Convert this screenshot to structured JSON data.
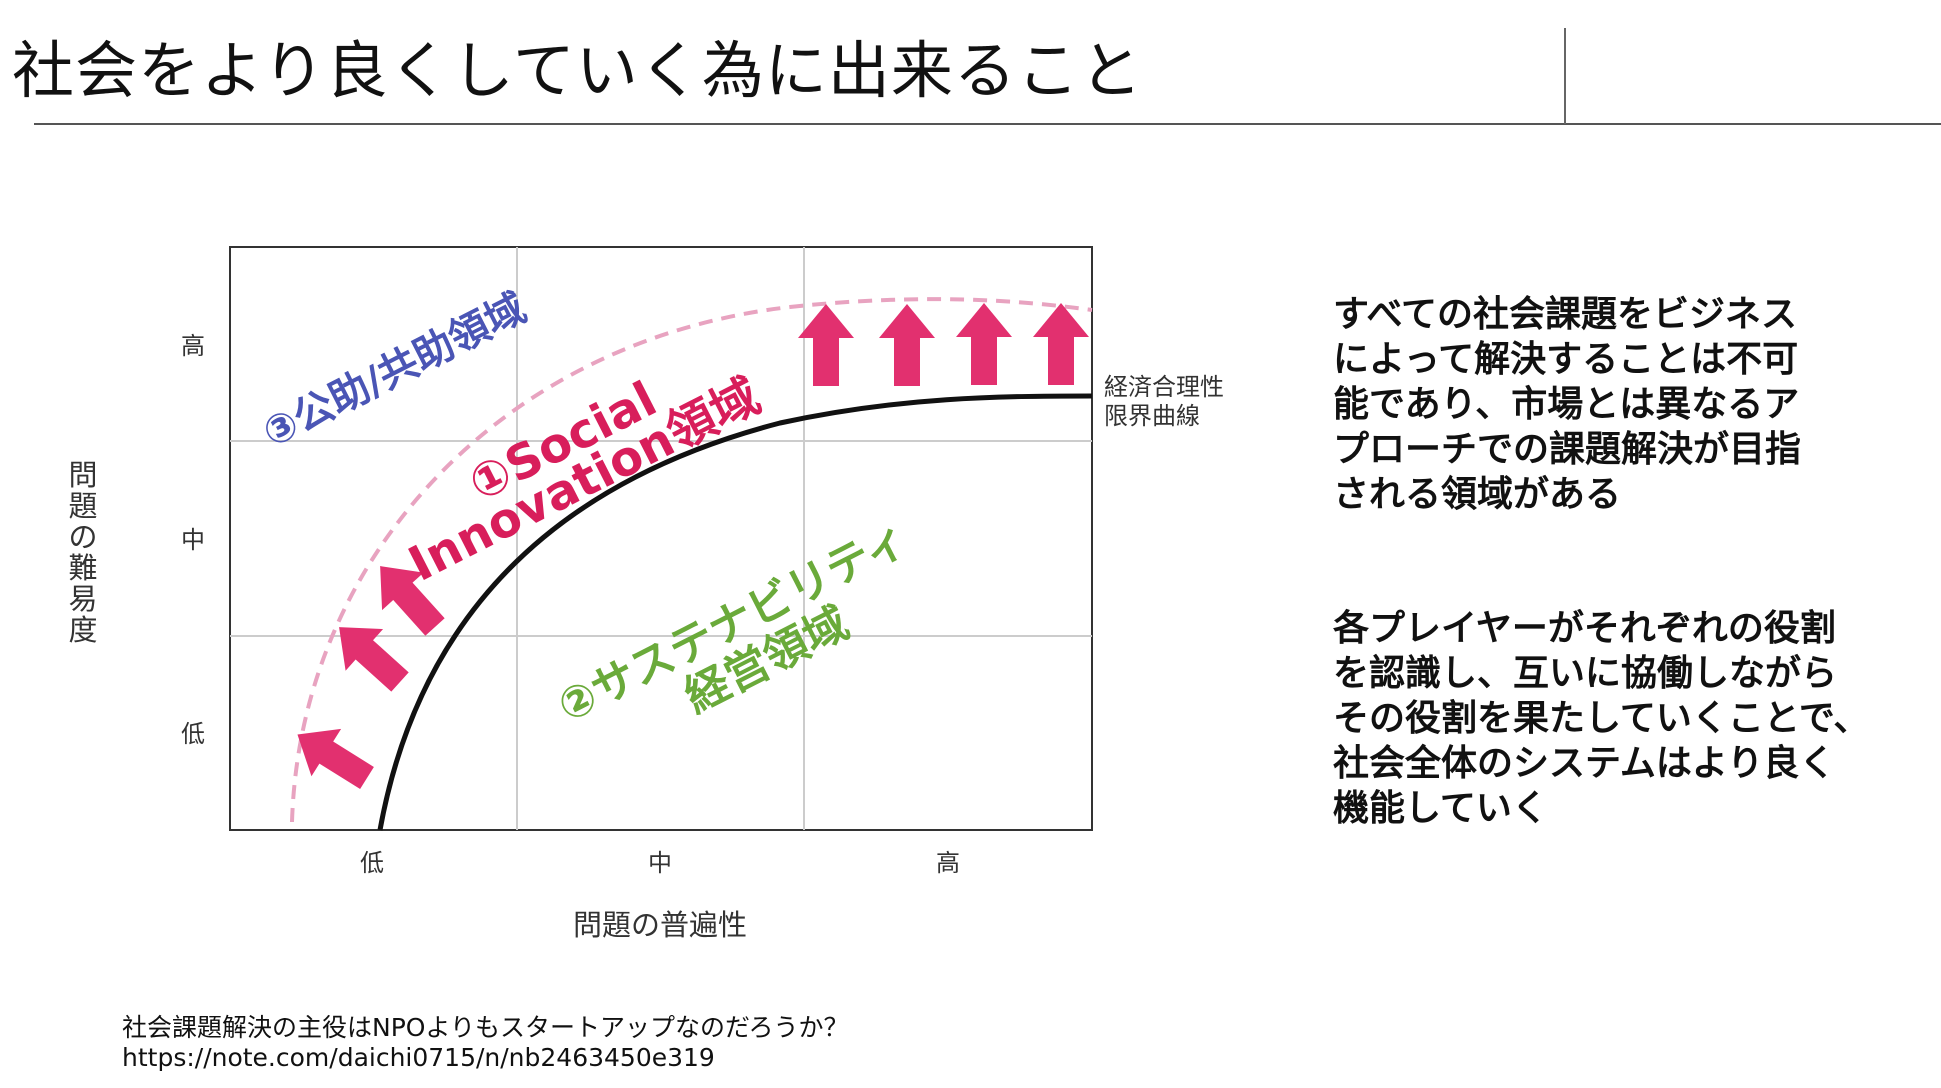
{
  "slide": {
    "title": "社会をより良くしていく為に出来ること"
  },
  "diagram": {
    "y_axis_label": "問題の難易度",
    "x_axis_label": "問題の普遍性",
    "y_ticks": [
      "高",
      "中",
      "低"
    ],
    "x_ticks": [
      "低",
      "中",
      "高"
    ],
    "curve_label_line1": "経済合理性",
    "curve_label_line2": "限界曲線",
    "region_public_label": "③公助/共助領域",
    "region_social_line1": "①Social",
    "region_social_line2": "Innovation領域",
    "region_sustain_line1": "②サステナビリティ",
    "region_sustain_line2": "経営領域",
    "colors": {
      "arrow": "#e2306f",
      "curve": "#111111",
      "dashed_curve": "#e8a3c0",
      "public_region": "#4a55b5",
      "social_region": "#d81e5b",
      "sustain_region": "#6aaa3a",
      "grid": "#cccccc"
    }
  },
  "explanation": {
    "paragraph1": "すべての社会課題をビジネス\nによって解決することは不可\n能であり、市場とは異なるア\nプローチでの課題解決が目指\nされる領域がある",
    "paragraph2": "各プレイヤーがそれぞれの役割\nを認識し、互いに協働しながら\nその役割を果たしていくことで、\n社会全体のシステムはより良く\n機能していく"
  },
  "source": {
    "title": "社会課題解決の主役はNPOよりもスタートアップなのだろうか？",
    "url": "https://note.com/daichi0715/n/nb2463450e319"
  }
}
